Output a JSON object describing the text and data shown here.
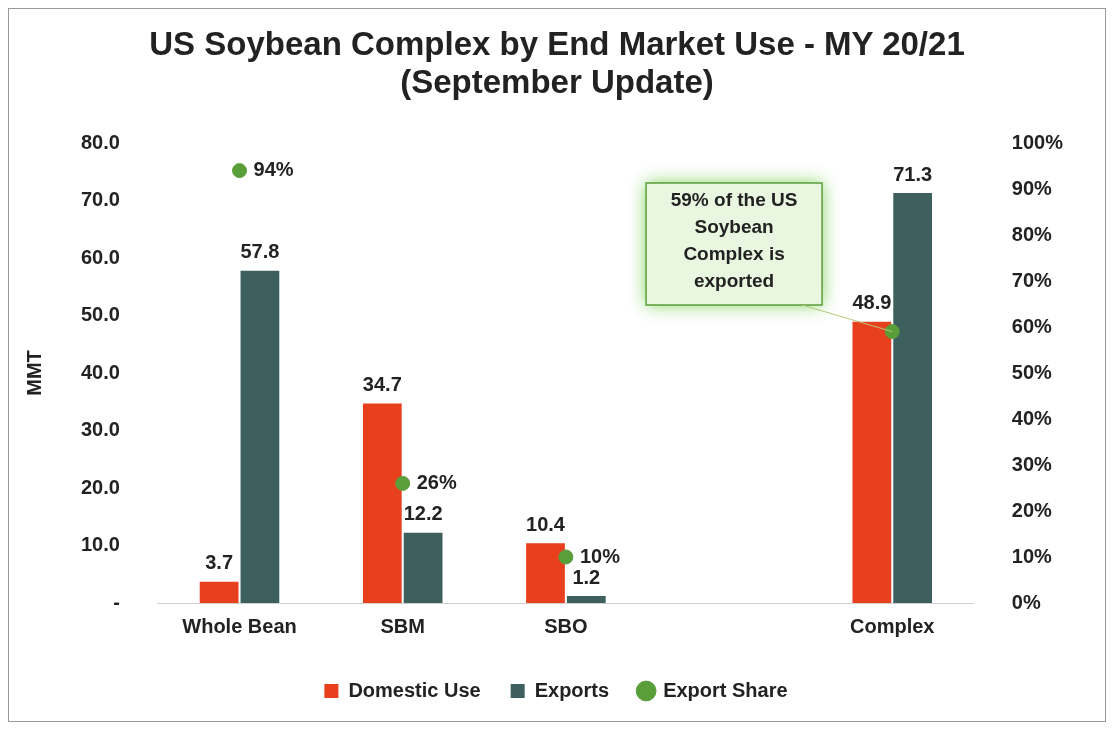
{
  "chart_data": {
    "type": "bar",
    "title": "US Soybean Complex by End Market Use - MY 20/21 (September Update)",
    "ylabel": "MMT",
    "categories": [
      "Whole Bean",
      "SBM",
      "SBO",
      null,
      "Complex"
    ],
    "series": [
      {
        "name": "Domestic Use",
        "color": "#e8401c",
        "values": [
          3.7,
          34.7,
          10.4,
          null,
          48.9
        ],
        "value_labels": [
          "3.7",
          "34.7",
          "10.4",
          null,
          "48.9"
        ]
      },
      {
        "name": "Exports",
        "color": "#3d5f5e",
        "values": [
          57.8,
          12.2,
          1.2,
          null,
          71.3
        ],
        "value_labels": [
          "57.8",
          "12.2",
          "1.2",
          null,
          "71.3"
        ]
      },
      {
        "name": "Export Share",
        "type": "scatter",
        "axis": "y2",
        "color": "#5a9e3a",
        "values": [
          94,
          26,
          10,
          null,
          59
        ],
        "value_labels": [
          "94%",
          "26%",
          "10%",
          null,
          null
        ]
      }
    ],
    "ylim": [
      0,
      80
    ],
    "yticks": [
      {
        "value": 0,
        "label": "-"
      },
      {
        "value": 10,
        "label": "10.0"
      },
      {
        "value": 20,
        "label": "20.0"
      },
      {
        "value": 30,
        "label": "30.0"
      },
      {
        "value": 40,
        "label": "40.0"
      },
      {
        "value": 50,
        "label": "50.0"
      },
      {
        "value": 60,
        "label": "60.0"
      },
      {
        "value": 70,
        "label": "70.0"
      },
      {
        "value": 80,
        "label": "80.0"
      }
    ],
    "y2lim": [
      0,
      100
    ],
    "y2ticks": [
      {
        "value": 0,
        "label": "0%"
      },
      {
        "value": 10,
        "label": "10%"
      },
      {
        "value": 20,
        "label": "20%"
      },
      {
        "value": 30,
        "label": "30%"
      },
      {
        "value": 40,
        "label": "40%"
      },
      {
        "value": 50,
        "label": "50%"
      },
      {
        "value": 60,
        "label": "60%"
      },
      {
        "value": 70,
        "label": "70%"
      },
      {
        "value": 80,
        "label": "80%"
      },
      {
        "value": 90,
        "label": "90%"
      },
      {
        "value": 100,
        "label": "100%"
      }
    ],
    "annotations": [
      "59% of the US Soybean Complex is exported"
    ],
    "grid": false,
    "legend": "bottom",
    "marker": "circle"
  }
}
